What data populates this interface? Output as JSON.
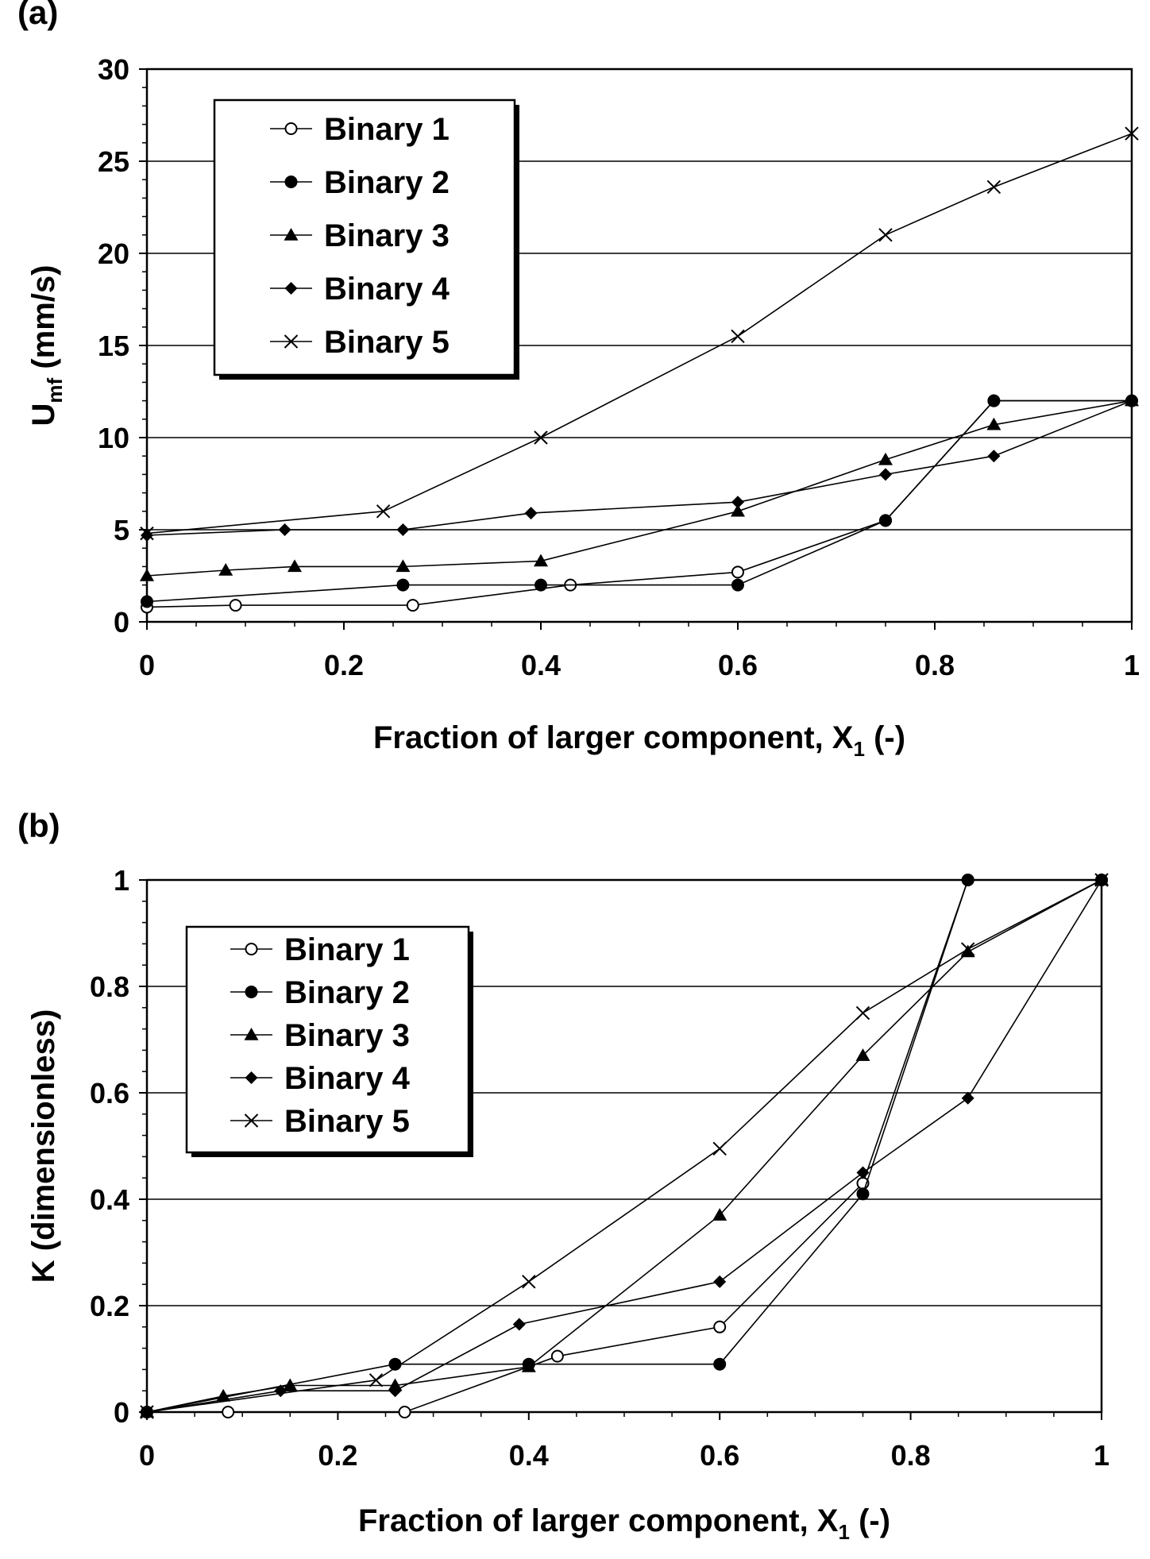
{
  "chart_data": [
    {
      "panel_label": "(a)",
      "type": "line",
      "xlabel_main": "Fraction of larger component, X",
      "xlabel_sub": "1",
      "xlabel_tail": " (-)",
      "ylabel_main": "U",
      "ylabel_sub": "mf",
      "ylabel_tail": " (mm/s)",
      "xlim": [
        0,
        1
      ],
      "ylim": [
        0,
        30
      ],
      "xticks": [
        0,
        0.2,
        0.4,
        0.6,
        0.8,
        1
      ],
      "xtick_labels": [
        "0",
        "0.2",
        "0.4",
        "0.6",
        "0.8",
        "1"
      ],
      "yticks": [
        0,
        5,
        10,
        15,
        20,
        25,
        30
      ],
      "ytick_labels": [
        "0",
        "5",
        "10",
        "15",
        "20",
        "25",
        "30"
      ],
      "grid": "horizontal",
      "legend_position": "top-left",
      "series": [
        {
          "name": "Binary 1",
          "marker": "open-circle",
          "points": [
            [
              0,
              0.8
            ],
            [
              0.09,
              0.9
            ],
            [
              0.27,
              0.9
            ],
            [
              0.43,
              2.0
            ],
            [
              0.6,
              2.7
            ],
            [
              0.75,
              5.5
            ],
            [
              0.86,
              12.0
            ],
            [
              1.0,
              12.0
            ]
          ]
        },
        {
          "name": "Binary 2",
          "marker": "filled-circle",
          "points": [
            [
              0,
              1.1
            ],
            [
              0.26,
              2.0
            ],
            [
              0.4,
              2.0
            ],
            [
              0.6,
              2.0
            ],
            [
              0.75,
              5.5
            ],
            [
              0.86,
              12.0
            ],
            [
              1.0,
              12.0
            ]
          ]
        },
        {
          "name": "Binary 3",
          "marker": "triangle",
          "points": [
            [
              0,
              2.5
            ],
            [
              0.08,
              2.8
            ],
            [
              0.15,
              3.0
            ],
            [
              0.26,
              3.0
            ],
            [
              0.4,
              3.3
            ],
            [
              0.6,
              6.0
            ],
            [
              0.75,
              8.8
            ],
            [
              0.86,
              10.7
            ],
            [
              1.0,
              12.0
            ]
          ]
        },
        {
          "name": "Binary 4",
          "marker": "diamond",
          "points": [
            [
              0,
              4.7
            ],
            [
              0.14,
              5.0
            ],
            [
              0.26,
              5.0
            ],
            [
              0.39,
              5.9
            ],
            [
              0.6,
              6.5
            ],
            [
              0.75,
              8.0
            ],
            [
              0.86,
              9.0
            ],
            [
              1.0,
              12.0
            ]
          ]
        },
        {
          "name": "Binary 5",
          "marker": "x",
          "points": [
            [
              0,
              4.8
            ],
            [
              0.24,
              6.0
            ],
            [
              0.4,
              10.0
            ],
            [
              0.6,
              15.5
            ],
            [
              0.75,
              21.0
            ],
            [
              0.86,
              23.6
            ],
            [
              1.0,
              26.5
            ]
          ]
        }
      ]
    },
    {
      "panel_label": "(b)",
      "type": "line",
      "xlabel_main": "Fraction of larger component, X",
      "xlabel_sub": "1",
      "xlabel_tail": " (-)",
      "ylabel_main": "K (dimensionless)",
      "ylabel_sub": "",
      "ylabel_tail": "",
      "xlim": [
        0,
        1
      ],
      "ylim": [
        0,
        1
      ],
      "xticks": [
        0,
        0.2,
        0.4,
        0.6,
        0.8,
        1
      ],
      "xtick_labels": [
        "0",
        "0.2",
        "0.4",
        "0.6",
        "0.8",
        "1"
      ],
      "yticks": [
        0,
        0.2,
        0.4,
        0.6,
        0.8,
        1
      ],
      "ytick_labels": [
        "0",
        "0.2",
        "0.4",
        "0.6",
        "0.8",
        "1"
      ],
      "grid": "horizontal",
      "legend_position": "top-left",
      "series": [
        {
          "name": "Binary 1",
          "marker": "open-circle",
          "points": [
            [
              0,
              0.0
            ],
            [
              0.085,
              0.0
            ],
            [
              0.27,
              0.0
            ],
            [
              0.43,
              0.105
            ],
            [
              0.6,
              0.16
            ],
            [
              0.75,
              0.43
            ],
            [
              0.86,
              1.0
            ],
            [
              1.0,
              1.0
            ]
          ]
        },
        {
          "name": "Binary 2",
          "marker": "filled-circle",
          "points": [
            [
              0,
              0.0
            ],
            [
              0.26,
              0.09
            ],
            [
              0.4,
              0.09
            ],
            [
              0.6,
              0.09
            ],
            [
              0.75,
              0.41
            ],
            [
              0.86,
              1.0
            ],
            [
              1.0,
              1.0
            ]
          ]
        },
        {
          "name": "Binary 3",
          "marker": "triangle",
          "points": [
            [
              0,
              0.0
            ],
            [
              0.08,
              0.03
            ],
            [
              0.15,
              0.05
            ],
            [
              0.26,
              0.05
            ],
            [
              0.4,
              0.085
            ],
            [
              0.6,
              0.37
            ],
            [
              0.75,
              0.67
            ],
            [
              0.86,
              0.865
            ],
            [
              1.0,
              1.0
            ]
          ]
        },
        {
          "name": "Binary 4",
          "marker": "diamond",
          "points": [
            [
              0,
              0.0
            ],
            [
              0.14,
              0.04
            ],
            [
              0.26,
              0.04
            ],
            [
              0.39,
              0.165
            ],
            [
              0.6,
              0.245
            ],
            [
              0.75,
              0.45
            ],
            [
              0.86,
              0.59
            ],
            [
              1.0,
              1.0
            ]
          ]
        },
        {
          "name": "Binary 5",
          "marker": "x",
          "points": [
            [
              0,
              0.0
            ],
            [
              0.24,
              0.06
            ],
            [
              0.4,
              0.245
            ],
            [
              0.6,
              0.495
            ],
            [
              0.75,
              0.75
            ],
            [
              0.86,
              0.87
            ],
            [
              1.0,
              1.0
            ]
          ]
        }
      ]
    }
  ]
}
